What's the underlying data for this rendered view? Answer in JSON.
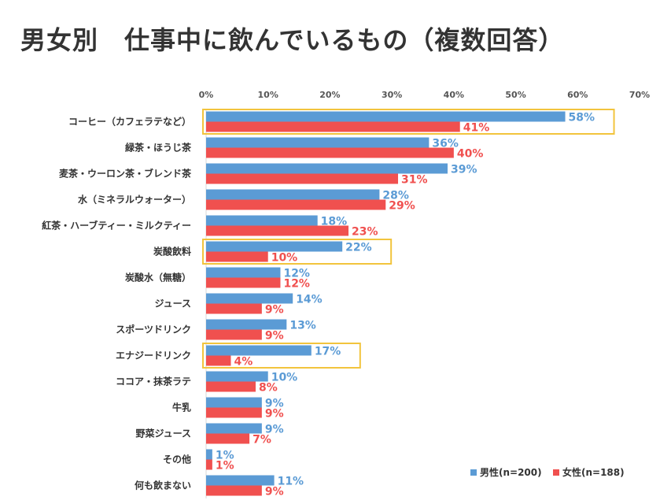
{
  "chart_data": {
    "type": "bar",
    "orientation": "horizontal",
    "title": "男女別　仕事中に飲んでいるもの（複数回答）",
    "categories": [
      "コーヒー（カフェラテなど）",
      "緑茶・ほうじ茶",
      "麦茶・ウーロン茶・ブレンド茶",
      "水（ミネラルウォーター）",
      "紅茶・ハーブティー・ミルクティー",
      "炭酸飲料",
      "炭酸水（無糖）",
      "ジュース",
      "スポーツドリンク",
      "エナジードリンク",
      "ココア・抹茶ラテ",
      "牛乳",
      "野菜ジュース",
      "その他",
      "何も飲まない"
    ],
    "series": [
      {
        "name": "男性(n=200)",
        "color": "#5b9bd5",
        "values": [
          58,
          36,
          39,
          28,
          18,
          22,
          12,
          14,
          13,
          17,
          10,
          9,
          9,
          1,
          11
        ],
        "labels": [
          "58%",
          "36%",
          "39%",
          "28%",
          "18%",
          "22%",
          "12%",
          "14%",
          "13%",
          "17%",
          "10%",
          "9%",
          "9%",
          "1%",
          "11%"
        ]
      },
      {
        "name": "女性(n=188)",
        "color": "#f0504f",
        "values": [
          41,
          40,
          31,
          29,
          23,
          10,
          12,
          9,
          9,
          4,
          8,
          9,
          7,
          1,
          9
        ],
        "labels": [
          "41%",
          "40%",
          "31%",
          "29%",
          "23%",
          "10%",
          "12%",
          "9%",
          "9%",
          "4%",
          "8%",
          "9%",
          "7%",
          "1%",
          "9%"
        ]
      }
    ],
    "xlim": [
      0,
      70
    ],
    "x_ticks": [
      "0%",
      "10%",
      "20%",
      "30%",
      "40%",
      "50%",
      "60%",
      "70%"
    ],
    "highlighted_categories": [
      "コーヒー（カフェラテなど）",
      "炭酸飲料",
      "エナジードリンク"
    ],
    "highlight_color": "#f2c43d",
    "legend_position": "bottom-right",
    "grid": false
  }
}
